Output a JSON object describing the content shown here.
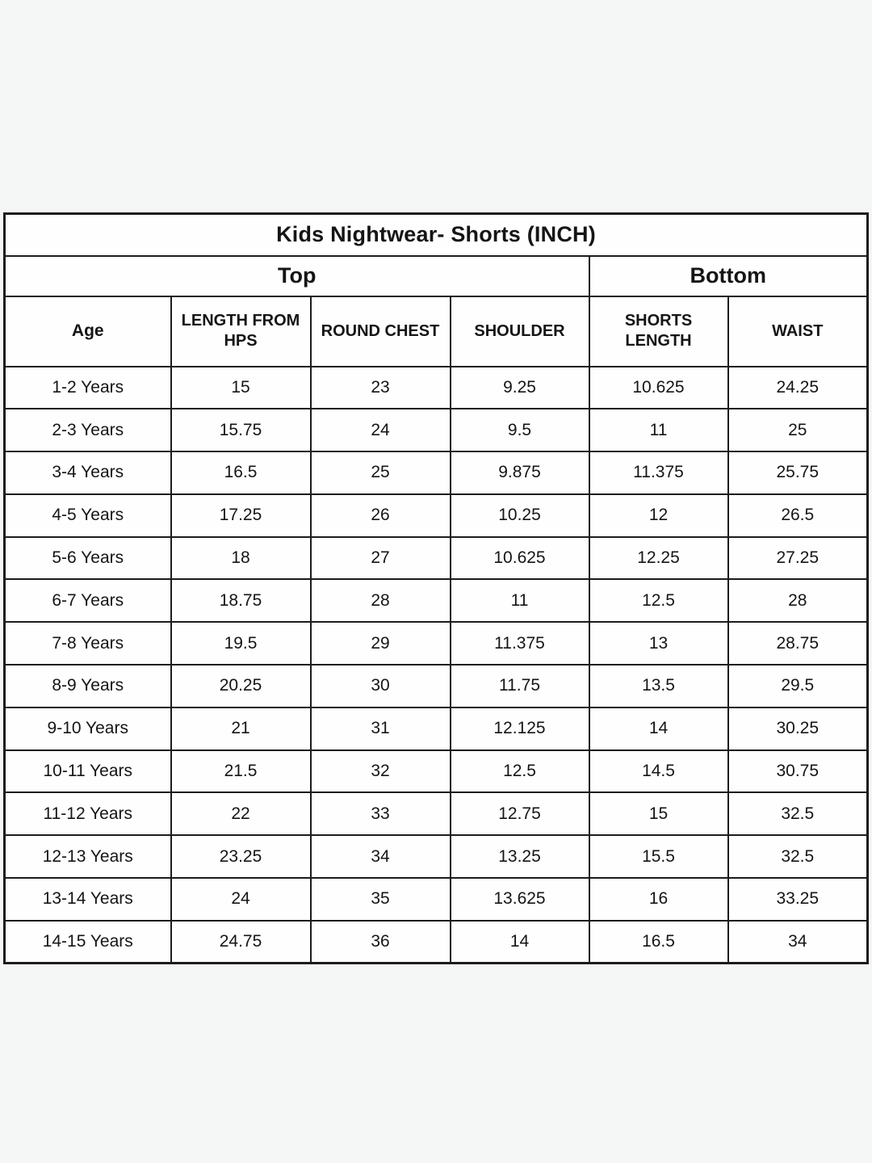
{
  "table": {
    "title": "Kids Nightwear- Shorts (INCH)",
    "sections": {
      "top": "Top",
      "bottom": "Bottom"
    },
    "columns": [
      "Age",
      "LENGTH FROM HPS",
      "ROUND CHEST",
      "SHOULDER",
      "SHORTS LENGTH",
      "WAIST"
    ],
    "rows": [
      [
        "1-2 Years",
        "15",
        "23",
        "9.25",
        "10.625",
        "24.25"
      ],
      [
        "2-3 Years",
        "15.75",
        "24",
        "9.5",
        "11",
        "25"
      ],
      [
        "3-4 Years",
        "16.5",
        "25",
        "9.875",
        "11.375",
        "25.75"
      ],
      [
        "4-5 Years",
        "17.25",
        "26",
        "10.25",
        "12",
        "26.5"
      ],
      [
        "5-6 Years",
        "18",
        "27",
        "10.625",
        "12.25",
        "27.25"
      ],
      [
        "6-7 Years",
        "18.75",
        "28",
        "11",
        "12.5",
        "28"
      ],
      [
        "7-8 Years",
        "19.5",
        "29",
        "11.375",
        "13",
        "28.75"
      ],
      [
        "8-9 Years",
        "20.25",
        "30",
        "11.75",
        "13.5",
        "29.5"
      ],
      [
        "9-10 Years",
        "21",
        "31",
        "12.125",
        "14",
        "30.25"
      ],
      [
        "10-11 Years",
        "21.5",
        "32",
        "12.5",
        "14.5",
        "30.75"
      ],
      [
        "11-12 Years",
        "22",
        "33",
        "12.75",
        "15",
        "32.5"
      ],
      [
        "12-13 Years",
        "23.25",
        "34",
        "13.25",
        "15.5",
        "32.5"
      ],
      [
        "13-14 Years",
        "24",
        "35",
        "13.625",
        "16",
        "33.25"
      ],
      [
        "14-15 Years",
        "24.75",
        "36",
        "14",
        "16.5",
        "34"
      ]
    ],
    "colors": {
      "background": "#f5f6f6",
      "cell_background": "#fefefe",
      "border": "#1c1c1c",
      "text": "#151515"
    }
  }
}
